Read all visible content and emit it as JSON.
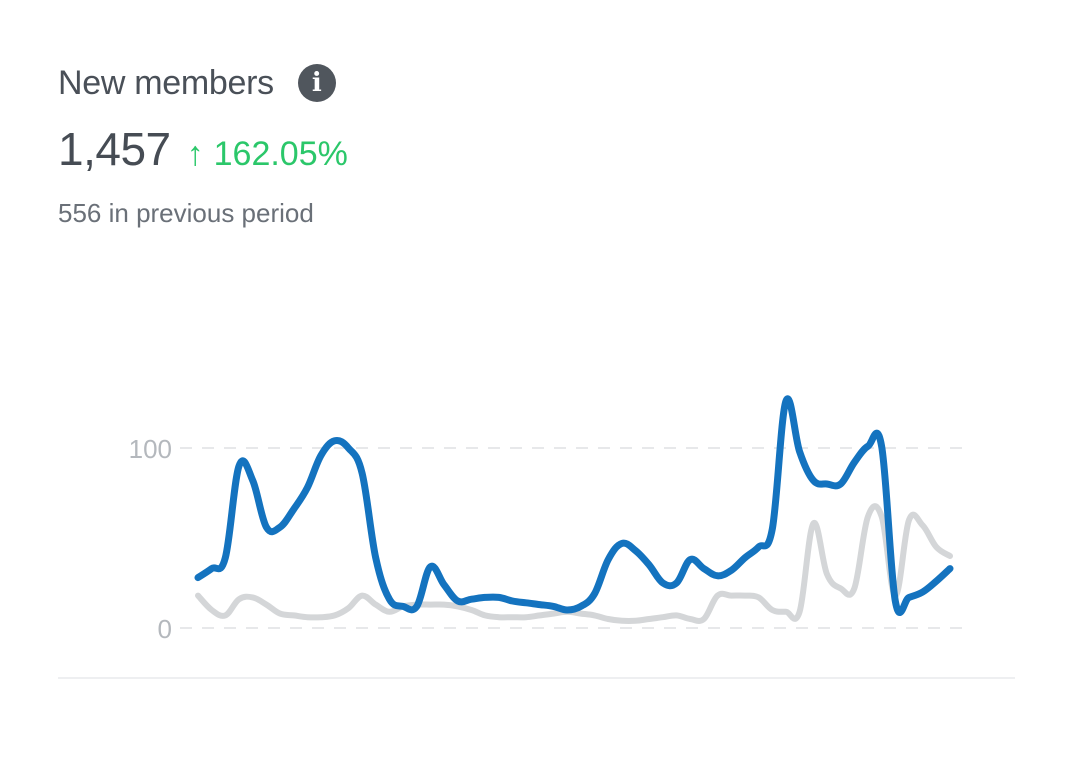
{
  "card": {
    "title": "New members",
    "info_icon": "info-icon",
    "value": "1,457",
    "change_arrow": "↑",
    "change_percent": "162.05%",
    "previous_text": "556 in previous period"
  },
  "colors": {
    "current": "#1473bf",
    "previous": "#d4d6d8",
    "positive": "#2bc76a"
  },
  "chart_data": {
    "type": "line",
    "ylim": [
      0,
      100
    ],
    "yticks": [
      "0",
      "100"
    ],
    "grid": "dashed horizontal",
    "series": [
      {
        "values": [
          28,
          33,
          39,
          90,
          82,
          56,
          56,
          66,
          78,
          96,
          104,
          100,
          86,
          39,
          16,
          12,
          12,
          34,
          24,
          15,
          16,
          17,
          17,
          15,
          14,
          13,
          12,
          10,
          12,
          19,
          38,
          47,
          43,
          35,
          25,
          25,
          38,
          33,
          29,
          32,
          39,
          45,
          55,
          126,
          98,
          82,
          80,
          80,
          92,
          101,
          101,
          15,
          17,
          20,
          26,
          33
        ]
      },
      {
        "values": [
          18,
          10,
          7,
          16,
          17,
          13,
          8,
          7,
          6,
          6,
          7,
          11,
          18,
          13,
          9,
          12,
          13,
          13,
          13,
          12,
          10,
          7,
          6,
          6,
          6,
          7,
          8,
          9,
          8,
          7,
          5,
          4,
          4,
          5,
          6,
          7,
          5,
          5,
          18,
          18,
          18,
          17,
          10,
          9,
          9,
          58,
          30,
          22,
          22,
          62,
          62,
          18,
          60,
          57,
          45,
          40
        ]
      }
    ]
  }
}
